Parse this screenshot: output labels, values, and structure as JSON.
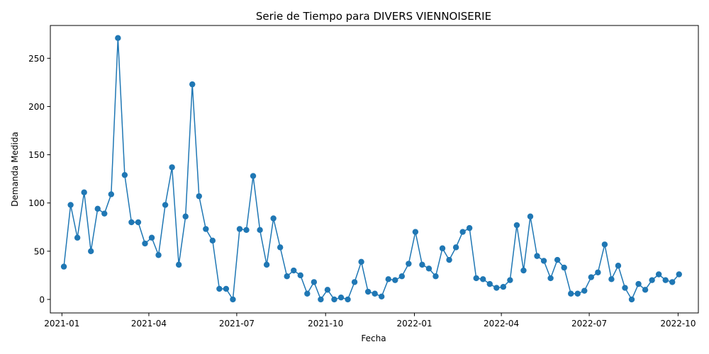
{
  "chart_data": {
    "type": "line",
    "title": "Serie de Tiempo para DIVERS VIENNOISERIE",
    "xlabel": "Fecha",
    "ylabel": "Demanda Medida",
    "line_color": "#1f77b4",
    "marker": "circle",
    "grid": false,
    "legend": "none",
    "xlim": [
      "2020-12-20",
      "2022-10-22"
    ],
    "ylim": [
      -14,
      284
    ],
    "x_ticks": [
      {
        "date": "2021-01-01",
        "label": "2021-01"
      },
      {
        "date": "2021-04-01",
        "label": "2021-04"
      },
      {
        "date": "2021-07-01",
        "label": "2021-07"
      },
      {
        "date": "2021-10-01",
        "label": "2021-10"
      },
      {
        "date": "2022-01-01",
        "label": "2022-01"
      },
      {
        "date": "2022-04-01",
        "label": "2022-04"
      },
      {
        "date": "2022-07-01",
        "label": "2022-07"
      },
      {
        "date": "2022-10-01",
        "label": "2022-10"
      }
    ],
    "y_ticks": [
      0,
      50,
      100,
      150,
      200,
      250
    ],
    "series": [
      {
        "x": [
          "2021-01-03",
          "2021-01-10",
          "2021-01-17",
          "2021-01-24",
          "2021-01-31",
          "2021-02-07",
          "2021-02-14",
          "2021-02-21",
          "2021-02-28",
          "2021-03-07",
          "2021-03-14",
          "2021-03-21",
          "2021-03-28",
          "2021-04-04",
          "2021-04-11",
          "2021-04-18",
          "2021-04-25",
          "2021-05-02",
          "2021-05-09",
          "2021-05-16",
          "2021-05-23",
          "2021-05-30",
          "2021-06-06",
          "2021-06-13",
          "2021-06-20",
          "2021-06-27",
          "2021-07-04",
          "2021-07-11",
          "2021-07-18",
          "2021-07-25",
          "2021-08-01",
          "2021-08-08",
          "2021-08-15",
          "2021-08-22",
          "2021-08-29",
          "2021-09-05",
          "2021-09-12",
          "2021-09-19",
          "2021-09-26",
          "2021-10-03",
          "2021-10-10",
          "2021-10-17",
          "2021-10-24",
          "2021-10-31",
          "2021-11-07",
          "2021-11-14",
          "2021-11-21",
          "2021-11-28",
          "2021-12-05",
          "2021-12-12",
          "2021-12-19",
          "2021-12-26",
          "2022-01-02",
          "2022-01-09",
          "2022-01-16",
          "2022-01-23",
          "2022-01-30",
          "2022-02-06",
          "2022-02-13",
          "2022-02-20",
          "2022-02-27",
          "2022-03-06",
          "2022-03-13",
          "2022-03-20",
          "2022-03-27",
          "2022-04-03",
          "2022-04-10",
          "2022-04-17",
          "2022-04-24",
          "2022-05-01",
          "2022-05-08",
          "2022-05-15",
          "2022-05-22",
          "2022-05-29",
          "2022-06-05",
          "2022-06-12",
          "2022-06-19",
          "2022-06-26",
          "2022-07-03",
          "2022-07-10",
          "2022-07-17",
          "2022-07-24",
          "2022-07-31",
          "2022-08-07",
          "2022-08-14",
          "2022-08-21",
          "2022-08-28",
          "2022-09-04",
          "2022-09-11",
          "2022-09-18",
          "2022-09-25",
          "2022-10-02"
        ],
        "y": [
          34,
          98,
          64,
          111,
          50,
          94,
          89,
          109,
          271,
          129,
          80,
          80,
          58,
          64,
          46,
          98,
          137,
          36,
          86,
          223,
          107,
          73,
          61,
          11,
          11,
          0,
          73,
          72,
          128,
          72,
          36,
          84,
          54,
          24,
          30,
          25,
          6,
          18,
          0,
          10,
          0,
          2,
          0,
          18,
          39,
          8,
          6,
          3,
          21,
          20,
          24,
          37,
          70,
          36,
          32,
          24,
          53,
          41,
          54,
          70,
          74,
          22,
          21,
          16,
          12,
          13,
          20,
          77,
          30,
          86,
          45,
          40,
          22,
          41,
          33,
          6,
          6,
          9,
          23,
          28,
          57,
          21,
          35,
          12,
          0,
          16,
          10,
          20,
          26,
          20,
          18,
          26
        ]
      }
    ]
  }
}
